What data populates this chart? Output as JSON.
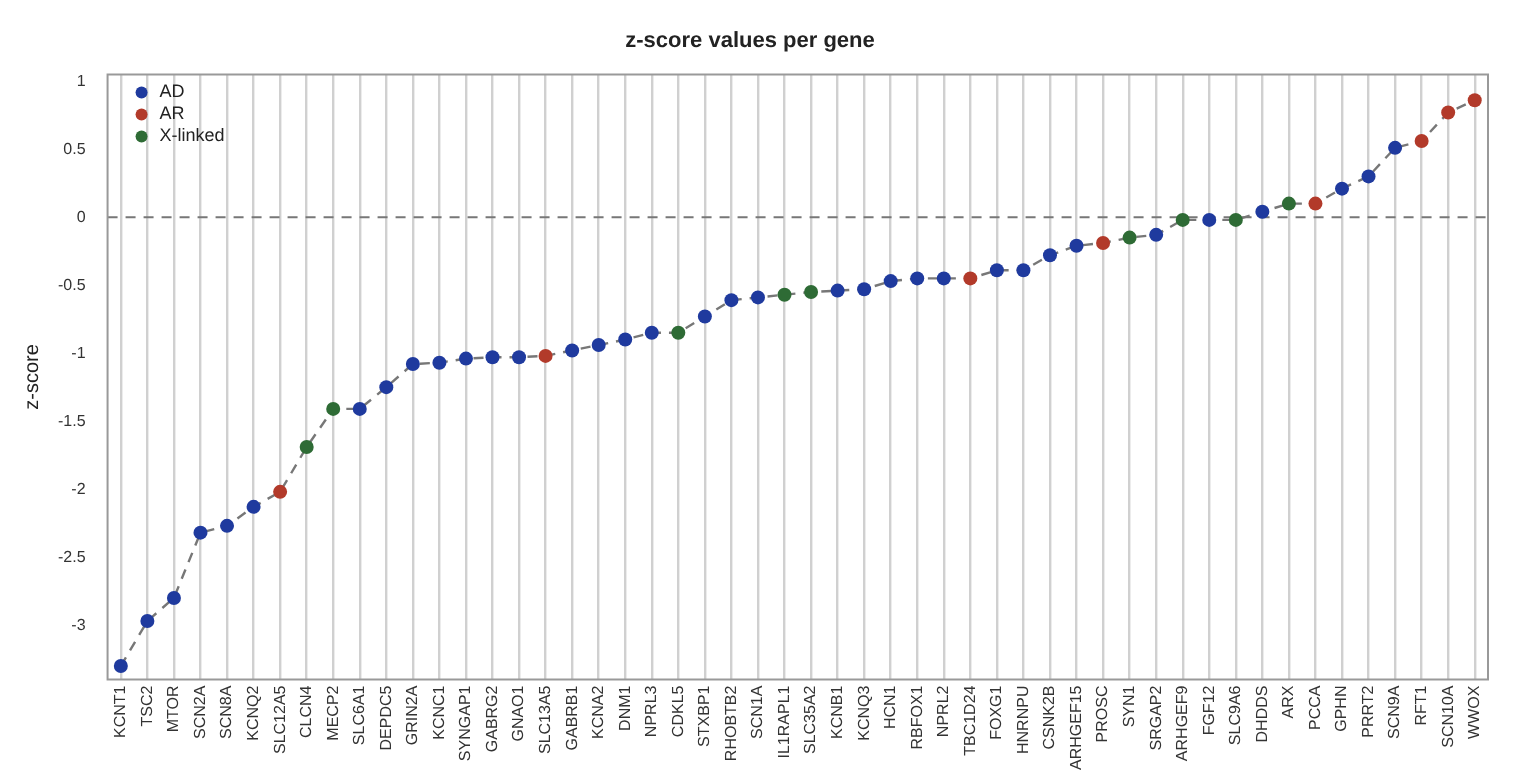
{
  "chart_data": {
    "type": "scatter",
    "title": "z-score values per gene",
    "ylabel": "z-score",
    "categories": [
      "KCNT1",
      "TSC2",
      "MTOR",
      "SCN2A",
      "SCN8A",
      "KCNQ2",
      "SLC12A5",
      "CLCN4",
      "MECP2",
      "SLC6A1",
      "DEPDC5",
      "GRIN2A",
      "KCNC1",
      "SYNGAP1",
      "GABRG2",
      "GNAO1",
      "SLC13A5",
      "GABRB1",
      "KCNA2",
      "DNM1",
      "NPRL3",
      "CDKL5",
      "STXBP1",
      "RHOBTB2",
      "SCN1A",
      "IL1RAPL1",
      "SLC35A2",
      "KCNB1",
      "KCNQ3",
      "HCN1",
      "RBFOX1",
      "NPRL2",
      "TBC1D24",
      "FOXG1",
      "HNRNPU",
      "CSNK2B",
      "ARHGEF15",
      "PROSC",
      "SYN1",
      "SRGAP2",
      "ARHGEF9",
      "FGF12",
      "SLC9A6",
      "DHDDS",
      "ARX",
      "PCCA",
      "GPHN",
      "PRRT2",
      "SCN9A",
      "RFT1",
      "SCN10A",
      "WWOX"
    ],
    "series": [
      {
        "type": "line",
        "color": "#777777",
        "line_style": "dashed",
        "marker": "none",
        "values": [
          -3.3,
          -2.97,
          -2.8,
          -2.32,
          -2.27,
          -2.13,
          -2.02,
          -1.69,
          -1.41,
          -1.41,
          -1.25,
          -1.08,
          -1.07,
          -1.04,
          -1.03,
          -1.03,
          -1.02,
          -0.98,
          -0.94,
          -0.9,
          -0.85,
          -0.85,
          -0.73,
          -0.61,
          -0.59,
          -0.57,
          -0.55,
          -0.54,
          -0.53,
          -0.47,
          -0.45,
          -0.45,
          -0.45,
          -0.39,
          -0.39,
          -0.28,
          -0.21,
          -0.19,
          -0.15,
          -0.13,
          -0.02,
          -0.02,
          -0.02,
          0.04,
          0.1,
          0.1,
          0.21,
          0.3,
          0.51,
          0.56,
          0.77,
          0.86
        ]
      },
      {
        "name": "AD",
        "color": "#1f3a9e",
        "values": [
          -3.3,
          -2.97,
          -2.8,
          -2.32,
          -2.27,
          -2.13,
          null,
          null,
          null,
          -1.41,
          -1.25,
          -1.08,
          -1.07,
          -1.04,
          -1.03,
          -1.03,
          null,
          -0.98,
          -0.94,
          -0.9,
          -0.85,
          null,
          -0.73,
          -0.61,
          -0.59,
          null,
          null,
          -0.54,
          -0.53,
          -0.47,
          -0.45,
          -0.45,
          null,
          -0.39,
          -0.39,
          -0.28,
          -0.21,
          null,
          null,
          -0.13,
          null,
          -0.02,
          null,
          0.04,
          null,
          null,
          0.21,
          0.3,
          0.51,
          null,
          null,
          null
        ]
      },
      {
        "name": "AR",
        "color": "#b23a2a",
        "values": [
          null,
          null,
          null,
          null,
          null,
          null,
          -2.02,
          null,
          null,
          null,
          null,
          null,
          null,
          null,
          null,
          null,
          -1.02,
          null,
          null,
          null,
          null,
          null,
          null,
          null,
          null,
          null,
          null,
          null,
          null,
          null,
          null,
          null,
          -0.45,
          null,
          null,
          null,
          null,
          -0.19,
          null,
          null,
          null,
          null,
          null,
          null,
          null,
          0.1,
          null,
          null,
          null,
          0.56,
          0.77,
          0.86
        ]
      },
      {
        "name": "X-linked",
        "color": "#2e6b35",
        "values": [
          null,
          null,
          null,
          null,
          null,
          null,
          null,
          -1.69,
          -1.41,
          null,
          null,
          null,
          null,
          null,
          null,
          null,
          null,
          null,
          null,
          null,
          null,
          -0.85,
          null,
          null,
          null,
          -0.57,
          -0.55,
          null,
          null,
          null,
          null,
          null,
          null,
          null,
          null,
          null,
          null,
          null,
          -0.15,
          null,
          -0.02,
          null,
          -0.02,
          null,
          0.1,
          null,
          null,
          null,
          null,
          null,
          null,
          null
        ]
      }
    ],
    "marker": "circle",
    "ylim": [
      -3.4,
      1.05
    ],
    "yticks": [
      -3,
      -2.5,
      -2,
      -1.5,
      -1,
      -0.5,
      0,
      0.5,
      1
    ],
    "ref_lines": [
      {
        "axis": "y",
        "value": 0,
        "color": "#777777",
        "line_style": "dashed"
      }
    ],
    "grid": "x",
    "legend": "top left"
  }
}
